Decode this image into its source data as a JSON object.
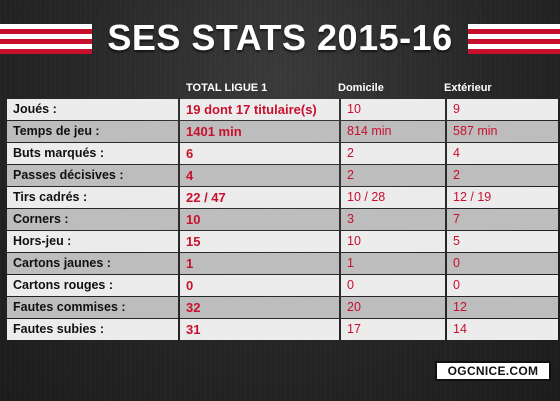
{
  "title": "SES STATS 2015-16",
  "columns": {
    "total": "TOTAL LIGUE 1",
    "home": "Domicile",
    "away": "Extérieur"
  },
  "rows": [
    {
      "label": "Joués :",
      "total": "19 dont 17 titulaire(s)",
      "home": "10",
      "away": "9"
    },
    {
      "label": "Temps de jeu :",
      "total": "1401 min",
      "home": "814 min",
      "away": "587 min"
    },
    {
      "label": "Buts marqués :",
      "total": "6",
      "home": "2",
      "away": "4"
    },
    {
      "label": "Passes décisives :",
      "total": "4",
      "home": "2",
      "away": "2"
    },
    {
      "label": "Tirs cadrés :",
      "total": "22 / 47",
      "home": "10 / 28",
      "away": "12 / 19"
    },
    {
      "label": "Corners :",
      "total": "10",
      "home": "3",
      "away": "7"
    },
    {
      "label": "Hors-jeu :",
      "total": "15",
      "home": "10",
      "away": "5"
    },
    {
      "label": "Cartons jaunes :",
      "total": "1",
      "home": "1",
      "away": "0"
    },
    {
      "label": "Cartons rouges :",
      "total": "0",
      "home": "0",
      "away": "0"
    },
    {
      "label": "Fautes commises :",
      "total": "32",
      "home": "20",
      "away": "12"
    },
    {
      "label": "Fautes subies :",
      "total": "31",
      "home": "17",
      "away": "14"
    }
  ],
  "logo": "OGCNICE.COM",
  "colors": {
    "accent": "#c8102e",
    "row_light": "#ececec",
    "row_dark": "#bdbdbd",
    "background": "#262626"
  }
}
